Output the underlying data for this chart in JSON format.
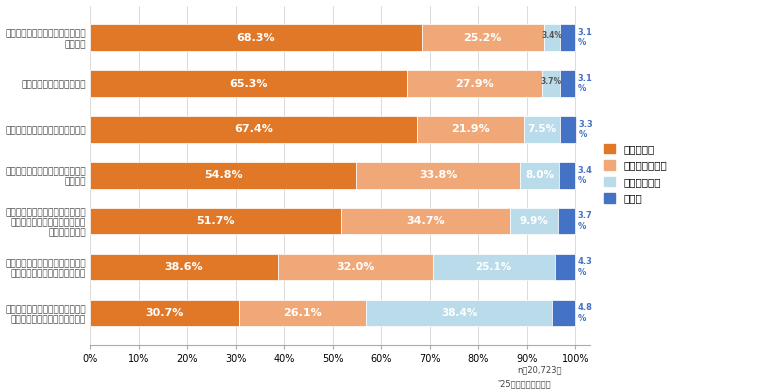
{
  "categories": [
    "水道のじゃ口の開け閉めをこまめ\nにしよう",
    "ごみをきちんと分別しよう",
    "すいとう（マイボトル）を使おう",
    "明かりやテレビのつけっぱなしは\nやめよう",
    "旬のもの（季節の食べ物）や、低\n炭素の野菜や果物など（旬産室\n物）を食べよう",
    "公園や森、水辺に行ったときは、\n生き物や植物を見つけてみよう",
    "木や花、野菜や果物などの植物を\n育てたり、世話をしたりしよう"
  ],
  "data": [
    [
      68.3,
      25.2,
      3.4,
      3.1
    ],
    [
      65.3,
      27.9,
      3.7,
      3.1
    ],
    [
      67.4,
      21.9,
      7.5,
      3.3
    ],
    [
      54.8,
      33.8,
      8.0,
      3.4
    ],
    [
      51.7,
      34.7,
      9.9,
      3.7
    ],
    [
      38.6,
      32.0,
      25.1,
      4.3
    ],
    [
      30.7,
      26.1,
      38.4,
      4.8
    ]
  ],
  "colors": [
    "#E07828",
    "#F0A878",
    "#BADCEA",
    "#4472C4"
  ],
  "legend_labels": [
    "よくできた",
    "まあまあできた",
    "できなかった",
    "その他"
  ],
  "xlabel_note": "‶25の方は答えを集計",
  "n_note": "n＝20,723人",
  "background_color": "#ffffff",
  "text_color": "#404040",
  "font_size_bar": 8,
  "font_size_ytick": 6.5,
  "xlim": [
    0,
    100
  ]
}
